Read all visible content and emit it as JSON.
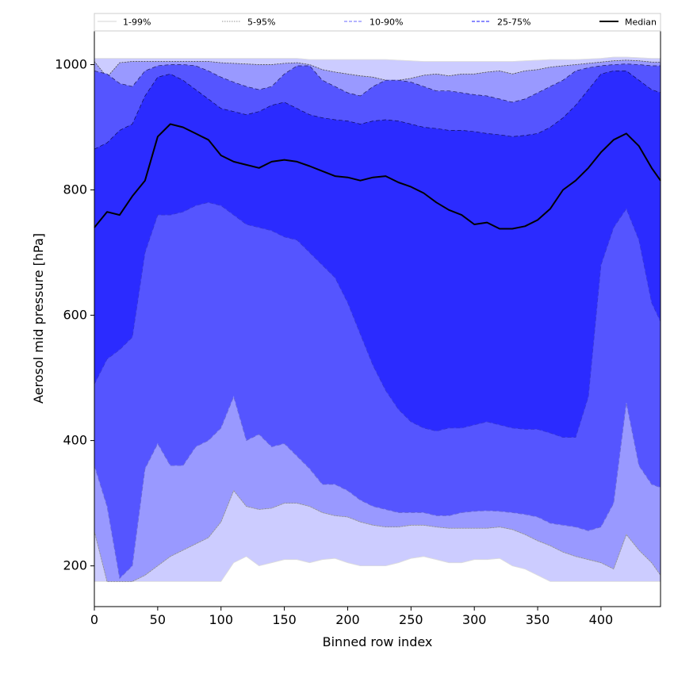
{
  "chart_data": {
    "type": "area",
    "xlabel": "Binned row index",
    "ylabel": "Aerosol mid pressure [hPa]",
    "xlim": [
      0,
      447
    ],
    "ylim": [
      135,
      1055
    ],
    "xticks": [
      0,
      50,
      100,
      150,
      200,
      250,
      300,
      350,
      400
    ],
    "yticks": [
      200,
      400,
      600,
      800,
      1000
    ],
    "grid": false,
    "legend_position": "top",
    "x": [
      0,
      10,
      20,
      30,
      40,
      50,
      60,
      70,
      80,
      90,
      100,
      110,
      120,
      130,
      140,
      150,
      160,
      170,
      180,
      190,
      200,
      210,
      220,
      230,
      240,
      250,
      260,
      270,
      280,
      290,
      300,
      310,
      320,
      330,
      340,
      350,
      360,
      370,
      380,
      390,
      400,
      410,
      420,
      430,
      440,
      447
    ],
    "bands": [
      {
        "name": "1-99%",
        "color": "#ccccff",
        "edge_color": "#dddddd",
        "lower": [
          175,
          175,
          175,
          175,
          175,
          175,
          175,
          175,
          175,
          175,
          175,
          205,
          215,
          200,
          205,
          210,
          210,
          205,
          210,
          212,
          205,
          200,
          200,
          200,
          205,
          212,
          215,
          210,
          205,
          205,
          210,
          210,
          212,
          200,
          195,
          185,
          175,
          175,
          175,
          175,
          175,
          175,
          175,
          175,
          175,
          175
        ],
        "upper": [
          1010,
          1010,
          1010,
          1010,
          1010,
          1010,
          1010,
          1010,
          1010,
          1010,
          1010,
          1010,
          1010,
          1010,
          1010,
          1010,
          1010,
          1008,
          1008,
          1008,
          1008,
          1008,
          1008,
          1008,
          1007,
          1006,
          1005,
          1005,
          1005,
          1005,
          1005,
          1005,
          1005,
          1005,
          1006,
          1007,
          1008,
          1008,
          1008,
          1009,
          1010,
          1012,
          1012,
          1011,
          1010,
          1010
        ]
      },
      {
        "name": "5-95%",
        "color": "#9999ff",
        "edge_color": "#aaaaaa",
        "lower": [
          255,
          175,
          175,
          175,
          185,
          200,
          215,
          225,
          235,
          245,
          270,
          320,
          295,
          290,
          292,
          300,
          300,
          295,
          285,
          280,
          278,
          270,
          265,
          262,
          262,
          265,
          265,
          262,
          260,
          260,
          260,
          260,
          262,
          258,
          250,
          240,
          232,
          222,
          215,
          210,
          205,
          195,
          250,
          225,
          205,
          185
        ],
        "upper": [
          1005,
          980,
          1003,
          1005,
          1005,
          1005,
          1005,
          1005,
          1005,
          1005,
          1003,
          1002,
          1001,
          1000,
          1000,
          1002,
          1003,
          1000,
          992,
          988,
          985,
          982,
          980,
          975,
          975,
          978,
          983,
          985,
          982,
          985,
          985,
          988,
          990,
          985,
          990,
          992,
          996,
          998,
          1000,
          1002,
          1004,
          1006,
          1007,
          1006,
          1004,
          1004
        ]
      },
      {
        "name": "10-90%",
        "color": "#5555ff",
        "edge_color": "#8888ff",
        "lower": [
          360,
          295,
          180,
          200,
          355,
          395,
          360,
          360,
          390,
          400,
          420,
          470,
          400,
          410,
          390,
          395,
          375,
          355,
          330,
          330,
          320,
          305,
          295,
          290,
          285,
          285,
          285,
          280,
          280,
          285,
          287,
          288,
          287,
          285,
          282,
          278,
          268,
          265,
          262,
          256,
          262,
          300,
          460,
          360,
          330,
          325
        ],
        "upper": [
          990,
          985,
          970,
          965,
          990,
          998,
          1000,
          1000,
          998,
          990,
          980,
          972,
          965,
          960,
          965,
          985,
          998,
          998,
          975,
          965,
          955,
          950,
          965,
          975,
          975,
          972,
          965,
          958,
          958,
          955,
          952,
          950,
          945,
          940,
          945,
          955,
          965,
          975,
          990,
          995,
          998,
          1000,
          1001,
          1000,
          998,
          998
        ]
      },
      {
        "name": "25-75%",
        "color": "#2b2bff",
        "edge_color": "#4444ff",
        "lower": [
          490,
          530,
          545,
          565,
          700,
          760,
          760,
          765,
          775,
          780,
          775,
          760,
          745,
          740,
          735,
          725,
          720,
          700,
          680,
          660,
          620,
          570,
          520,
          480,
          450,
          430,
          420,
          415,
          420,
          420,
          425,
          430,
          425,
          420,
          418,
          418,
          412,
          405,
          405,
          470,
          680,
          740,
          770,
          720,
          620,
          590
        ],
        "upper": [
          865,
          875,
          895,
          905,
          950,
          980,
          985,
          975,
          960,
          945,
          930,
          925,
          920,
          925,
          935,
          940,
          930,
          920,
          915,
          912,
          910,
          905,
          910,
          912,
          910,
          905,
          900,
          898,
          895,
          895,
          893,
          890,
          888,
          885,
          887,
          890,
          900,
          915,
          935,
          960,
          985,
          990,
          990,
          975,
          960,
          955
        ]
      }
    ],
    "median": {
      "name": "Median",
      "color": "#000000",
      "values": [
        740,
        765,
        760,
        790,
        815,
        885,
        905,
        900,
        890,
        880,
        855,
        845,
        840,
        835,
        845,
        848,
        845,
        838,
        830,
        822,
        820,
        815,
        820,
        822,
        812,
        805,
        795,
        780,
        768,
        760,
        745,
        748,
        738,
        738,
        742,
        752,
        770,
        800,
        815,
        835,
        860,
        880,
        890,
        870,
        835,
        815
      ]
    },
    "legend_entries": [
      {
        "label": "1-99%",
        "style": "solid",
        "color": "#dddddd"
      },
      {
        "label": "5-95%",
        "style": "dotted",
        "color": "#aaaaaa"
      },
      {
        "label": "10-90%",
        "style": "dashed",
        "color": "#8888ff"
      },
      {
        "label": "25-75%",
        "style": "dashed",
        "color": "#4444ff"
      },
      {
        "label": "Median",
        "style": "solid",
        "color": "#000000"
      }
    ]
  }
}
